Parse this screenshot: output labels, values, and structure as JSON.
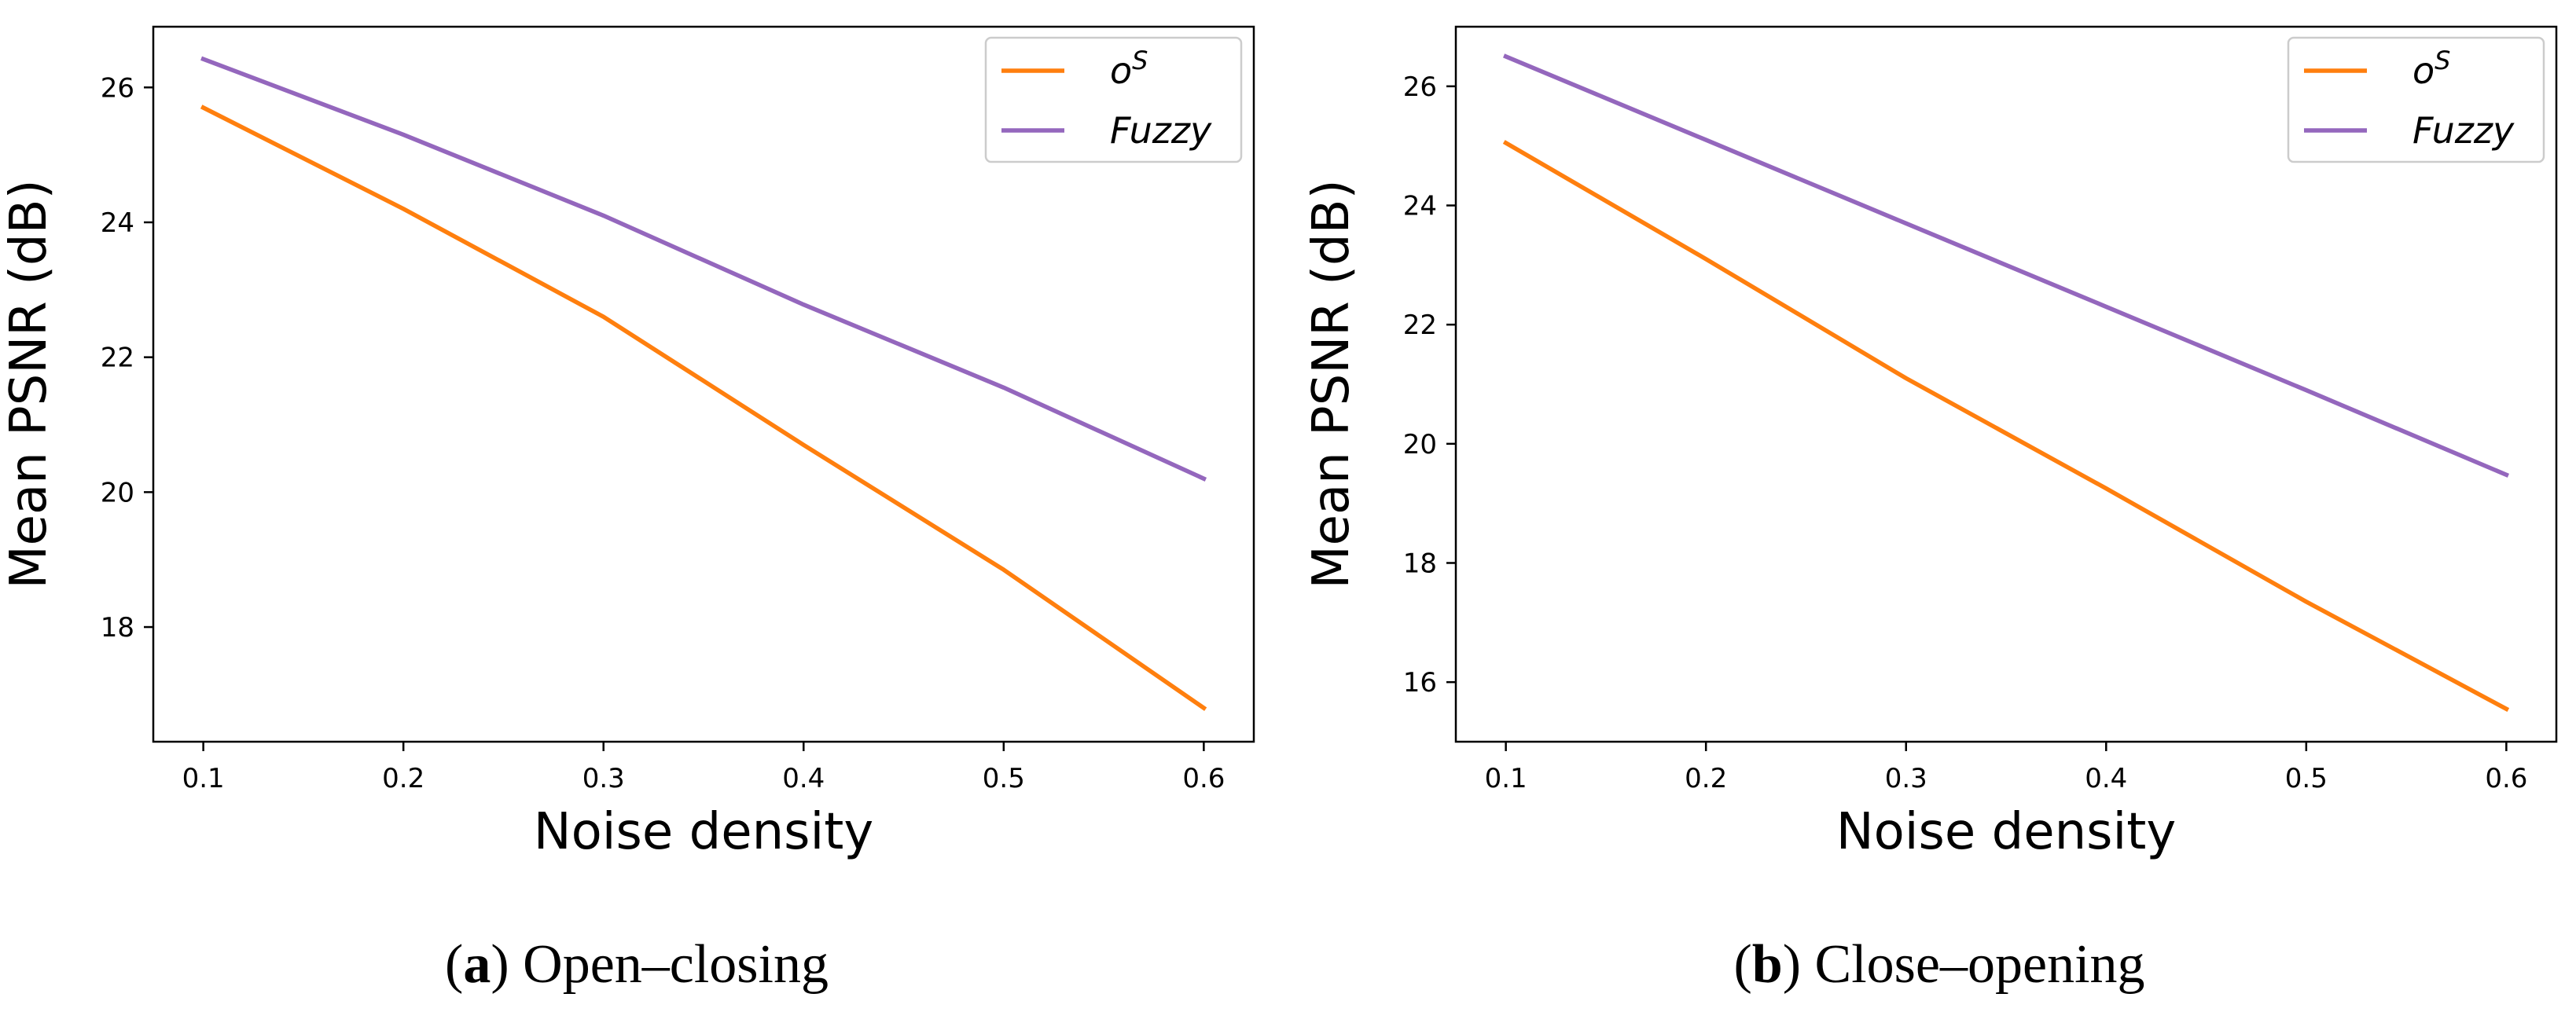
{
  "chart_data": [
    {
      "type": "line",
      "caption": {
        "letter": "a",
        "text": "Open–closing"
      },
      "xlabel": "Noise density",
      "ylabel": "Mean PSNR (dB)",
      "xlim": [
        0.075,
        0.625
      ],
      "ylim": [
        16.3,
        26.9
      ],
      "xticks": [
        0.1,
        0.2,
        0.3,
        0.4,
        0.5,
        0.6
      ],
      "xtick_labels": [
        "0.1",
        "0.2",
        "0.3",
        "0.4",
        "0.5",
        "0.6"
      ],
      "yticks": [
        18,
        20,
        22,
        24,
        26
      ],
      "ytick_labels": [
        "18",
        "20",
        "22",
        "24",
        "26"
      ],
      "legend_position": "top-right",
      "grid": false,
      "x": [
        0.1,
        0.2,
        0.3,
        0.4,
        0.5,
        0.6
      ],
      "series": [
        {
          "name": "o",
          "name_sup": "S",
          "color": "#ff7f0e",
          "values": [
            25.7,
            24.2,
            22.6,
            20.7,
            18.85,
            16.8
          ]
        },
        {
          "name": "Fuzzy",
          "color": "#9467bd",
          "values": [
            26.42,
            25.3,
            24.1,
            22.78,
            21.55,
            20.2
          ]
        }
      ]
    },
    {
      "type": "line",
      "caption": {
        "letter": "b",
        "text": "Close–opening"
      },
      "xlabel": "Noise density",
      "ylabel": "Mean PSNR (dB)",
      "xlim": [
        0.075,
        0.625
      ],
      "ylim": [
        15.0,
        27.0
      ],
      "xticks": [
        0.1,
        0.2,
        0.3,
        0.4,
        0.5,
        0.6
      ],
      "xtick_labels": [
        "0.1",
        "0.2",
        "0.3",
        "0.4",
        "0.5",
        "0.6"
      ],
      "yticks": [
        16,
        18,
        20,
        22,
        24,
        26
      ],
      "ytick_labels": [
        "16",
        "18",
        "20",
        "22",
        "24",
        "26"
      ],
      "legend_position": "top-right",
      "grid": false,
      "x": [
        0.1,
        0.2,
        0.3,
        0.4,
        0.5,
        0.6
      ],
      "series": [
        {
          "name": "o",
          "name_sup": "S",
          "color": "#ff7f0e",
          "values": [
            25.05,
            23.1,
            21.1,
            19.25,
            17.35,
            15.55
          ]
        },
        {
          "name": "Fuzzy",
          "color": "#9467bd",
          "values": [
            26.5,
            25.1,
            23.7,
            22.3,
            20.9,
            19.48
          ]
        }
      ]
    }
  ]
}
